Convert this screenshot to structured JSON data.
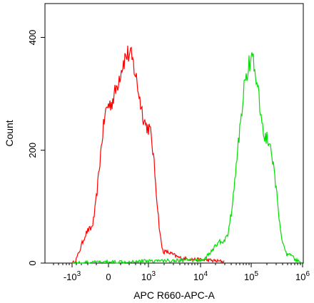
{
  "chart_data": {
    "type": "line",
    "xlabel": "APC R660-APC-A",
    "ylabel": "Count",
    "x_scale": "biexponential",
    "y_scale": "linear",
    "ylim": [
      0,
      460
    ],
    "y_ticks": [
      "0",
      "200",
      "400"
    ],
    "x_ticks": [
      {
        "label": "-10",
        "sup": "3"
      },
      {
        "label": "0",
        "sup": ""
      },
      {
        "label": "10",
        "sup": "3"
      },
      {
        "label": "10",
        "sup": "4"
      },
      {
        "label": "10",
        "sup": "5"
      },
      {
        "label": "10",
        "sup": "6"
      }
    ],
    "grid": false,
    "series": [
      {
        "color": "#ff0000",
        "x": [
          "-10^3",
          "-500",
          "0",
          "500",
          "10^3",
          "2×10^3",
          "5×10^3",
          "10^4",
          "3×10^4"
        ],
        "values": [
          0,
          60,
          280,
          370,
          240,
          20,
          8,
          6,
          3
        ]
      },
      {
        "color": "#00dd00",
        "x": [
          "-10^3",
          "0",
          "10^3",
          "10^4",
          "3×10^4",
          "10^5",
          "2×10^5",
          "5×10^5",
          "10^6"
        ],
        "values": [
          0,
          2,
          4,
          5,
          40,
          360,
          220,
          15,
          0
        ]
      }
    ]
  }
}
